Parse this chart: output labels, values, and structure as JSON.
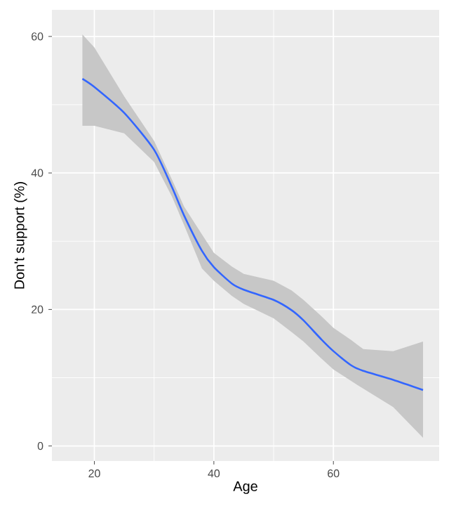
{
  "chart_data": {
    "type": "line",
    "xlabel": "Age",
    "ylabel": "Don't support (%)",
    "xlim": [
      12.9,
      77.7
    ],
    "ylim": [
      -2.2,
      63.9
    ],
    "xticks": [
      20,
      40,
      60
    ],
    "yticks": [
      0,
      20,
      40,
      60
    ],
    "grid": true,
    "series": [
      {
        "color": "#3366ff",
        "x": [
          18,
          20,
          25,
          30,
          33,
          35,
          38,
          40,
          43,
          45,
          50,
          53,
          55,
          58,
          60,
          63,
          65,
          70,
          75
        ],
        "values": [
          53.8,
          52.6,
          48.8,
          43.4,
          37.9,
          33.8,
          28.6,
          26.2,
          23.8,
          22.9,
          21.4,
          19.9,
          18.4,
          15.6,
          13.9,
          11.8,
          11.0,
          9.7,
          8.2
        ],
        "lower": [
          46.9,
          46.9,
          45.8,
          41.6,
          36.5,
          32.4,
          26,
          24.2,
          22,
          20.8,
          18.7,
          16.7,
          15.3,
          12.8,
          11.2,
          9.5,
          8.4,
          5.7,
          1.2
        ],
        "upper": [
          60.3,
          58.4,
          51.2,
          44.7,
          39,
          35.1,
          31,
          28.3,
          26.3,
          25.2,
          24.2,
          22.8,
          21.4,
          19,
          17.3,
          15.5,
          14.2,
          13.9,
          15.3
        ]
      }
    ]
  }
}
